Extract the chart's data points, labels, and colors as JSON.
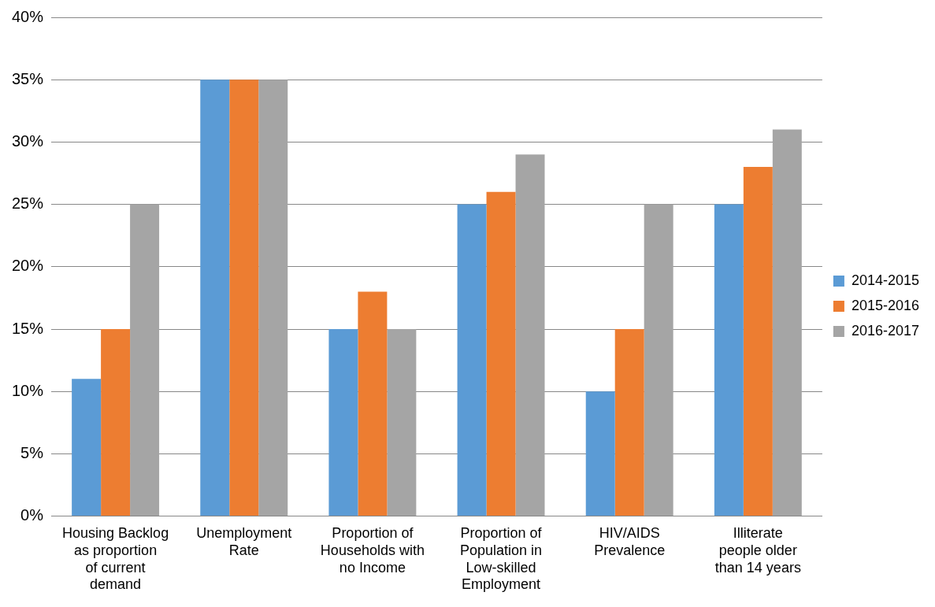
{
  "chart_data": {
    "type": "bar",
    "categories": [
      "Housing Backlog as proportion of current demand",
      "Unemployment Rate",
      "Proportion of Households with no Income",
      "Proportion of Population in Low-skilled Employment",
      "HIV/AIDS Prevalence",
      "Illiterate people older than 14 years"
    ],
    "series": [
      {
        "name": "2014-2015",
        "color": "#5b9bd5",
        "values": [
          11,
          35,
          15,
          25,
          10,
          25
        ]
      },
      {
        "name": "2015-2016",
        "color": "#ed7d31",
        "values": [
          15,
          35,
          18,
          26,
          15,
          28
        ]
      },
      {
        "name": "2016-2017",
        "color": "#a5a5a5",
        "values": [
          25,
          35,
          15,
          29,
          25,
          31
        ]
      }
    ],
    "ylim": [
      0,
      40
    ],
    "yticks": [
      {
        "value": 0,
        "label": "0%"
      },
      {
        "value": 5,
        "label": "5%"
      },
      {
        "value": 10,
        "label": "10%"
      },
      {
        "value": 15,
        "label": "15%"
      },
      {
        "value": 20,
        "label": "20%"
      },
      {
        "value": 25,
        "label": "25%"
      },
      {
        "value": 30,
        "label": "30%"
      },
      {
        "value": 35,
        "label": "35%"
      },
      {
        "value": 40,
        "label": "40%"
      }
    ],
    "grid": "y",
    "legend": "right"
  }
}
